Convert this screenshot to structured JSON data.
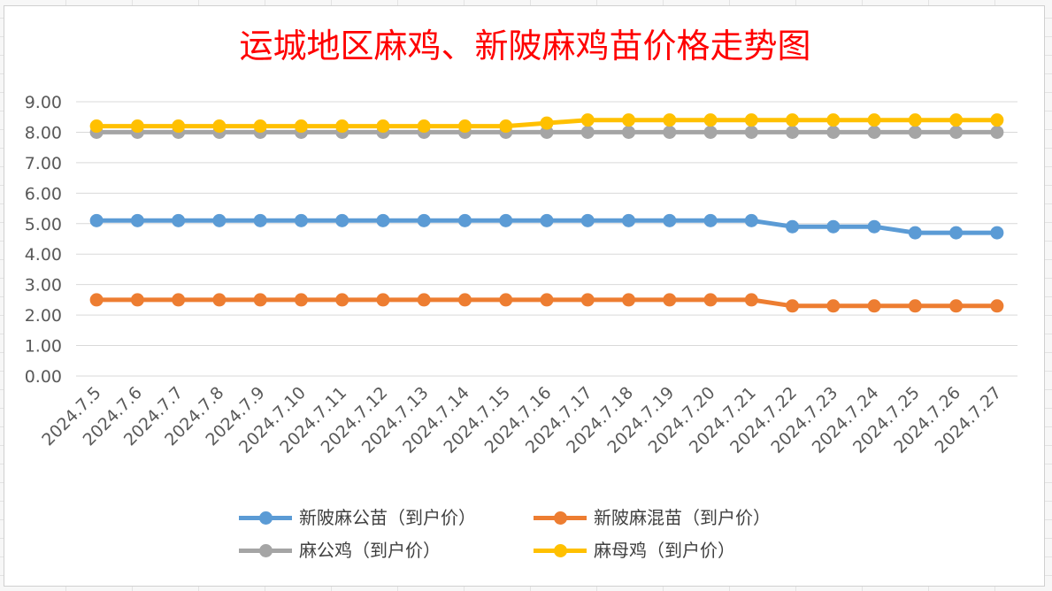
{
  "chart_data": {
    "type": "line",
    "title": "运城地区麻鸡、新陂麻鸡苗价格走势图",
    "categories": [
      "2024.7.5",
      "2024.7.6",
      "2024.7.7",
      "2024.7.8",
      "2024.7.9",
      "2024.7.10",
      "2024.7.11",
      "2024.7.12",
      "2024.7.13",
      "2024.7.14",
      "2024.7.15",
      "2024.7.16",
      "2024.7.17",
      "2024.7.18",
      "2024.7.19",
      "2024.7.20",
      "2024.7.21",
      "2024.7.22",
      "2024.7.23",
      "2024.7.24",
      "2024.7.25",
      "2024.7.26",
      "2024.7.27"
    ],
    "y_ticks": [
      "0.00",
      "1.00",
      "2.00",
      "3.00",
      "4.00",
      "5.00",
      "6.00",
      "7.00",
      "8.00",
      "9.00"
    ],
    "ylim": [
      0,
      9
    ],
    "grid": true,
    "legend_position": "bottom",
    "series": [
      {
        "name": "新陂麻公苗（到户价）",
        "color": "#5b9bd5",
        "values": [
          5.1,
          5.1,
          5.1,
          5.1,
          5.1,
          5.1,
          5.1,
          5.1,
          5.1,
          5.1,
          5.1,
          5.1,
          5.1,
          5.1,
          5.1,
          5.1,
          5.1,
          4.9,
          4.9,
          4.9,
          4.7,
          4.7,
          4.7
        ]
      },
      {
        "name": "新陂麻混苗（到户价）",
        "color": "#ed7d31",
        "values": [
          2.5,
          2.5,
          2.5,
          2.5,
          2.5,
          2.5,
          2.5,
          2.5,
          2.5,
          2.5,
          2.5,
          2.5,
          2.5,
          2.5,
          2.5,
          2.5,
          2.5,
          2.3,
          2.3,
          2.3,
          2.3,
          2.3,
          2.3
        ]
      },
      {
        "name": "麻公鸡（到户价）",
        "color": "#a5a5a5",
        "values": [
          8,
          8,
          8,
          8,
          8,
          8,
          8,
          8,
          8,
          8,
          8,
          8,
          8,
          8,
          8,
          8,
          8,
          8,
          8,
          8,
          8,
          8,
          8
        ]
      },
      {
        "name": "麻母鸡（到户价）",
        "color": "#ffc000",
        "values": [
          8.2,
          8.2,
          8.2,
          8.2,
          8.2,
          8.2,
          8.2,
          8.2,
          8.2,
          8.2,
          8.2,
          8.3,
          8.4,
          8.4,
          8.4,
          8.4,
          8.4,
          8.4,
          8.4,
          8.4,
          8.4,
          8.4,
          8.4
        ]
      }
    ]
  }
}
